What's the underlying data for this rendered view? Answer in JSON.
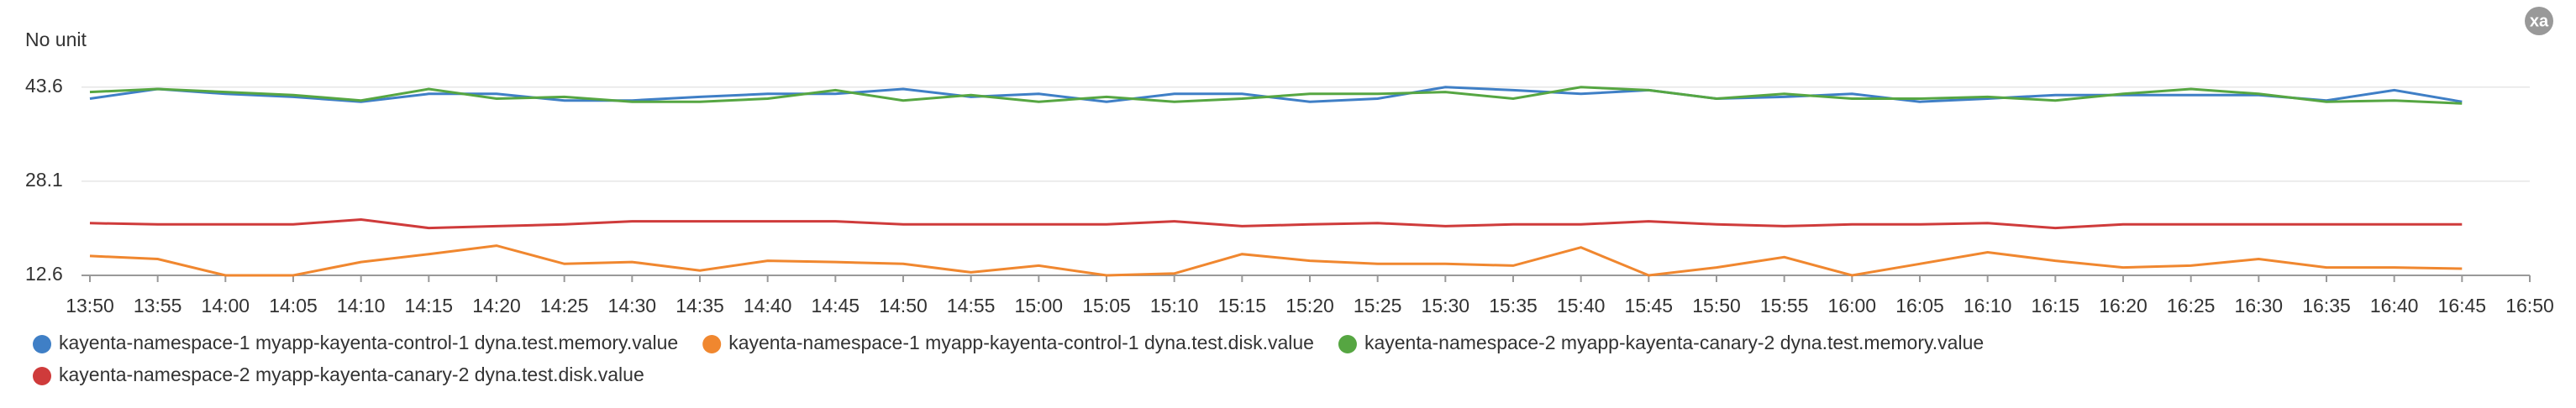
{
  "chart_data": {
    "type": "line",
    "y_label": "No unit",
    "badge": "xa",
    "x": [
      "13:50",
      "13:55",
      "14:00",
      "14:05",
      "14:10",
      "14:15",
      "14:20",
      "14:25",
      "14:30",
      "14:35",
      "14:40",
      "14:45",
      "14:50",
      "14:55",
      "15:00",
      "15:05",
      "15:10",
      "15:15",
      "15:20",
      "15:25",
      "15:30",
      "15:35",
      "15:40",
      "15:45",
      "15:50",
      "15:55",
      "16:00",
      "16:05",
      "16:10",
      "16:15",
      "16:20",
      "16:25",
      "16:30",
      "16:35",
      "16:40",
      "16:45"
    ],
    "xticks": [
      "13:50",
      "13:55",
      "14:00",
      "14:05",
      "14:10",
      "14:15",
      "14:20",
      "14:25",
      "14:30",
      "14:35",
      "14:40",
      "14:45",
      "14:50",
      "14:55",
      "15:00",
      "15:05",
      "15:10",
      "15:15",
      "15:20",
      "15:25",
      "15:30",
      "15:35",
      "15:40",
      "15:45",
      "15:50",
      "15:55",
      "16:00",
      "16:05",
      "16:10",
      "16:15",
      "16:20",
      "16:25",
      "16:30",
      "16:35",
      "16:40",
      "16:45",
      "16:50"
    ],
    "ylim": [
      12.6,
      46.2
    ],
    "yticks": [
      12.6,
      28.1,
      43.6
    ],
    "grid": true,
    "series": [
      {
        "name": "kayenta-namespace-1 myapp-kayenta-control-1 dyna.test.memory.value",
        "color": "#3f7fc6",
        "values": [
          41.7,
          43.3,
          42.5,
          42.0,
          41.2,
          42.5,
          42.5,
          41.4,
          41.4,
          42.0,
          42.5,
          42.5,
          43.3,
          42.0,
          42.5,
          41.2,
          42.5,
          42.5,
          41.2,
          41.7,
          43.6,
          43.1,
          42.5,
          43.1,
          41.7,
          42.0,
          42.5,
          41.2,
          41.7,
          42.3,
          42.3,
          42.3,
          42.3,
          41.4,
          43.1,
          41.2
        ]
      },
      {
        "name": "kayenta-namespace-1 myapp-kayenta-control-1 dyna.test.disk.value",
        "color": "#f0872f",
        "values": [
          15.8,
          15.3,
          12.6,
          12.6,
          14.8,
          16.1,
          17.5,
          14.5,
          14.8,
          13.4,
          15.0,
          14.8,
          14.5,
          13.1,
          14.2,
          12.6,
          12.9,
          16.1,
          15.0,
          14.5,
          14.5,
          14.2,
          17.2,
          12.6,
          13.9,
          15.6,
          12.6,
          14.5,
          16.4,
          15.0,
          13.9,
          14.2,
          15.3,
          13.9,
          13.9,
          13.7
        ]
      },
      {
        "name": "kayenta-namespace-2 myapp-kayenta-canary-2 dyna.test.memory.value",
        "color": "#56a642",
        "values": [
          42.8,
          43.3,
          42.8,
          42.3,
          41.4,
          43.3,
          41.7,
          42.0,
          41.2,
          41.2,
          41.7,
          43.1,
          41.4,
          42.3,
          41.2,
          42.0,
          41.2,
          41.7,
          42.5,
          42.5,
          42.8,
          41.7,
          43.6,
          43.1,
          41.7,
          42.5,
          41.7,
          41.7,
          42.0,
          41.4,
          42.5,
          43.3,
          42.5,
          41.2,
          41.4,
          40.9
        ]
      },
      {
        "name": "kayenta-namespace-2 myapp-kayenta-canary-2 dyna.test.disk.value",
        "color": "#cf3b3b",
        "values": [
          21.2,
          21.0,
          21.0,
          21.0,
          21.8,
          20.4,
          20.7,
          21.0,
          21.5,
          21.5,
          21.5,
          21.5,
          21.0,
          21.0,
          21.0,
          21.0,
          21.5,
          20.7,
          21.0,
          21.2,
          20.7,
          21.0,
          21.0,
          21.5,
          21.0,
          20.7,
          21.0,
          21.0,
          21.2,
          20.4,
          21.0,
          21.0,
          21.0,
          21.0,
          21.0,
          21.0
        ]
      }
    ]
  }
}
